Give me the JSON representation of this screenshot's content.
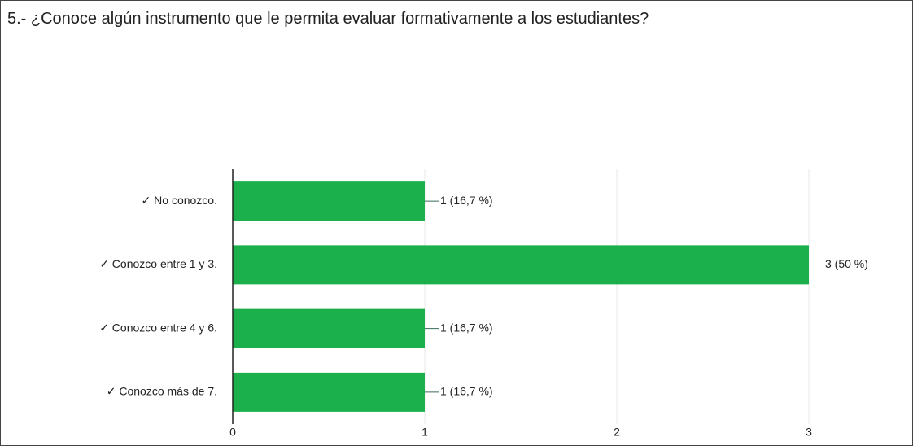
{
  "chart_data": {
    "type": "bar",
    "orientation": "horizontal",
    "title": "5.- ¿Conoce algún instrumento que le permita evaluar formativamente a los estudiantes?",
    "categories": [
      "✓ No conozco.",
      "✓ Conozco entre 1 y 3.",
      "✓ Conozco entre 4 y 6.",
      "✓ Conozco más de 7."
    ],
    "values": [
      1,
      3,
      1,
      1
    ],
    "value_labels": [
      "1 (16,7 %)",
      "3 (50 %)",
      "1 (16,7 %)",
      "1 (16,7 %)"
    ],
    "color": "#1bb04b",
    "xlim": [
      0,
      3
    ],
    "xticks": [
      0,
      1,
      2,
      3
    ],
    "grid": true
  }
}
